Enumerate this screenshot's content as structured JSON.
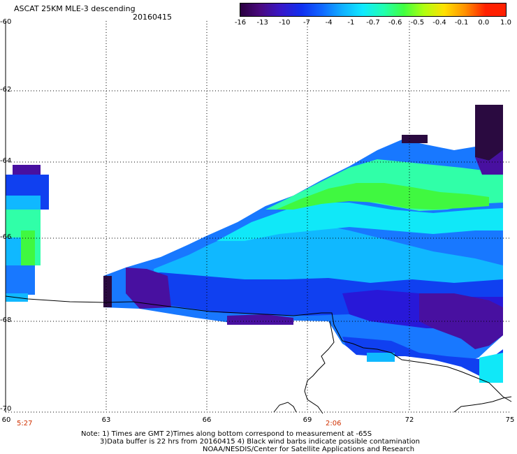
{
  "header": {
    "title": "ASCAT 25KM MLE-3 descending",
    "date": "20160415"
  },
  "colorbar": {
    "labels": [
      "-16",
      "-13",
      "-10",
      "-7",
      "-4",
      "-1",
      "-0.7",
      "-0.6",
      "-0.5",
      "-0.4",
      "-0.1",
      "0.0",
      "1.0"
    ],
    "colors": [
      "#2a0040",
      "#4a0a80",
      "#3818c8",
      "#1030f0",
      "#1068ff",
      "#10b0ff",
      "#10e8ff",
      "#20ffb0",
      "#40ff40",
      "#b0ff10",
      "#ffe000",
      "#ff9000",
      "#ff2000"
    ]
  },
  "axes": {
    "y_labels": [
      "-60",
      "-62",
      "-64",
      "-66",
      "-68",
      "-70"
    ],
    "x_labels": [
      "60",
      "63",
      "66",
      "69",
      "72",
      "75"
    ]
  },
  "times": [
    "5:27",
    "2:06"
  ],
  "notes": {
    "line1": "Note: 1) Times are GMT 2)Times along bottom correspond to measurement at -65S",
    "line2": "3)Data buffer is 22 hrs from 20160415 4) Black wind barbs indicate possible contamination",
    "line3": "NOAA/NESDIS/Center for Satellite Applications and Research"
  },
  "map_colors": {
    "dark_purple": "#2a0a40",
    "purple": "#4810a0",
    "blue_violet": "#2818d8",
    "blue": "#1040f0",
    "mid_blue": "#1878ff",
    "light_blue": "#10b8ff",
    "cyan": "#10e8f8",
    "aqua_green": "#30ffa8",
    "green": "#40f840",
    "coast": "#000000",
    "grid": "#000000"
  }
}
